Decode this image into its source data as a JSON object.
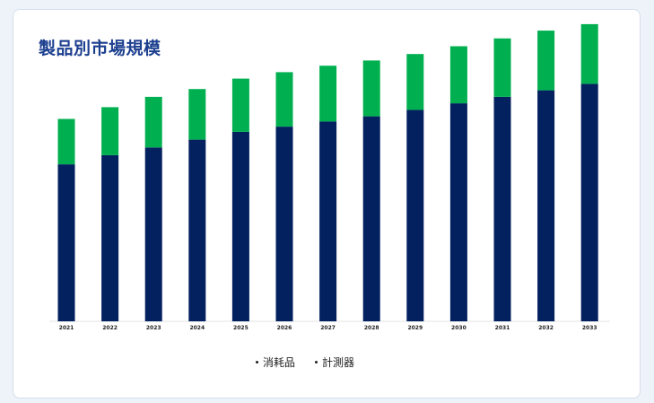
{
  "page": {
    "title": "製品別市場規模"
  },
  "colors": {
    "consumables": "#03205f",
    "instruments": "#00b050",
    "background": "#ffffff",
    "title": "#1c3f8f"
  },
  "chart_data": {
    "type": "bar",
    "stacked": true,
    "categories": [
      "2021",
      "2022",
      "2023",
      "2024",
      "2025",
      "2026",
      "2027",
      "2028",
      "2029",
      "2030",
      "2031",
      "2032",
      "2033"
    ],
    "series": [
      {
        "name": "消耗品",
        "color": "#03205f",
        "values": [
          121,
          128,
          134,
          140,
          146,
          150,
          154,
          158,
          163,
          168,
          173,
          178,
          183
        ]
      },
      {
        "name": "計測器",
        "color": "#00b050",
        "values": [
          35,
          37,
          39,
          39,
          41,
          42,
          43,
          43,
          43,
          44,
          45,
          46,
          46
        ]
      }
    ],
    "title": "製品別市場規模",
    "xlabel": "",
    "ylabel": "",
    "ylim": [
      0,
      240
    ],
    "grid": false,
    "legend_position": "bottom"
  }
}
